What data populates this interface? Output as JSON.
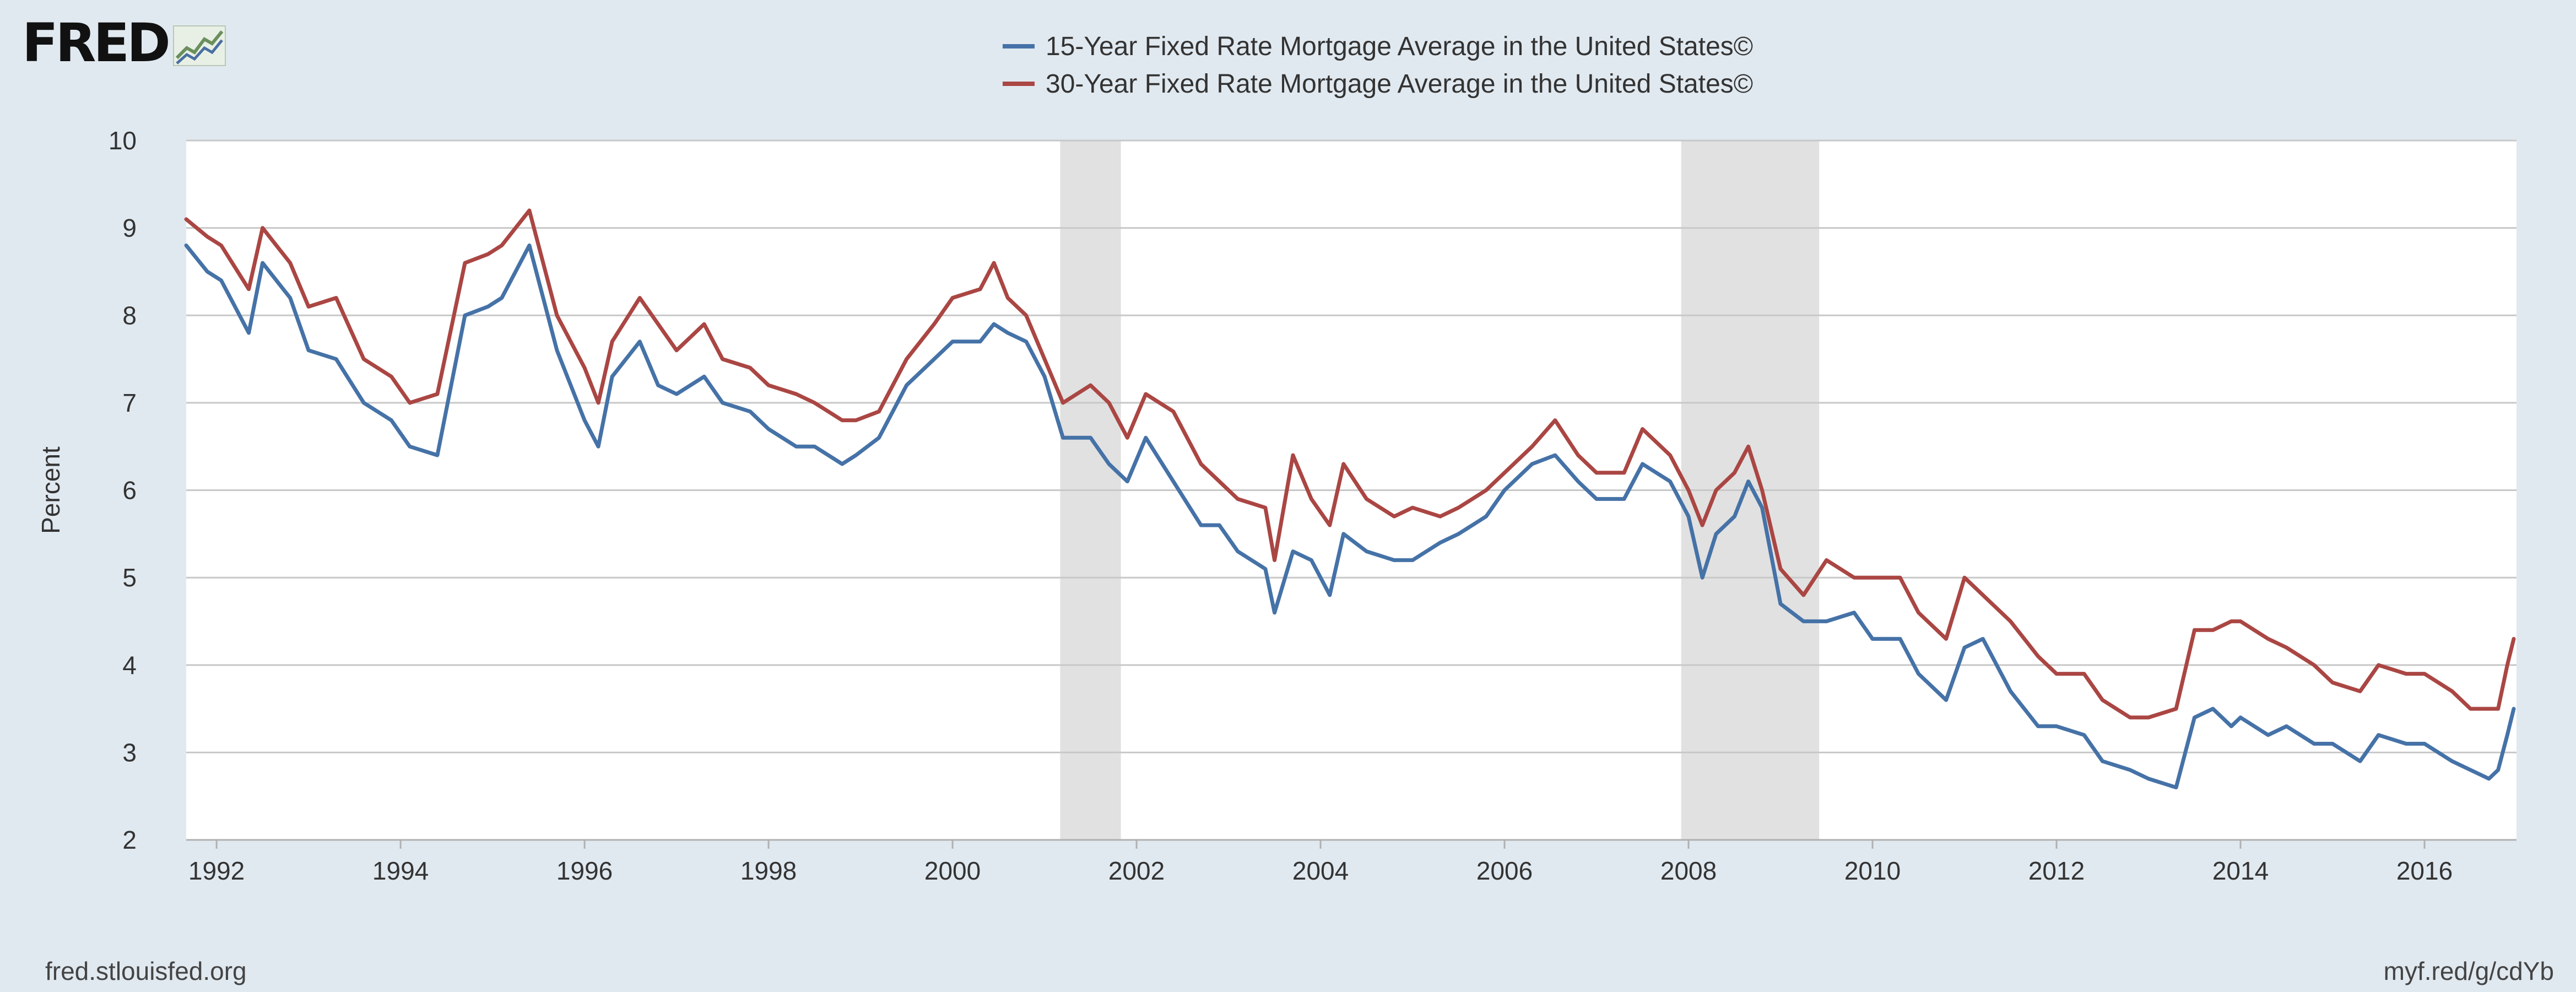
{
  "brand": {
    "logo_text": "FRED"
  },
  "footer": {
    "source": "fred.stlouisfed.org",
    "short_link": "myf.red/g/cdYb"
  },
  "chart_data": {
    "type": "line",
    "ylabel": "Percent",
    "xlabel": "",
    "ylim": [
      2,
      10
    ],
    "xlim": [
      1991.67,
      2017.0
    ],
    "y_ticks": [
      2,
      3,
      4,
      5,
      6,
      7,
      8,
      9,
      10
    ],
    "x_ticks": [
      1992,
      1994,
      1996,
      1998,
      2000,
      2002,
      2004,
      2006,
      2008,
      2010,
      2012,
      2014,
      2016
    ],
    "grid": "horizontal",
    "legend_position": "top-center",
    "recessions": [
      [
        2001.17,
        2001.83
      ],
      [
        2007.92,
        2009.42
      ]
    ],
    "series": [
      {
        "name": "15-Year Fixed Rate Mortgage Average in the United States©",
        "color": "#4572a7",
        "x": [
          1991.67,
          1991.9,
          1992.05,
          1992.35,
          1992.5,
          1992.8,
          1993.0,
          1993.3,
          1993.6,
          1993.9,
          1994.1,
          1994.4,
          1994.7,
          1994.95,
          1995.1,
          1995.4,
          1995.7,
          1996.0,
          1996.15,
          1996.3,
          1996.6,
          1996.8,
          1997.0,
          1997.3,
          1997.5,
          1997.8,
          1998.0,
          1998.3,
          1998.5,
          1998.8,
          1998.95,
          1999.2,
          1999.5,
          1999.8,
          2000.0,
          2000.3,
          2000.45,
          2000.6,
          2000.8,
          2001.0,
          2001.2,
          2001.5,
          2001.7,
          2001.9,
          2002.1,
          2002.4,
          2002.7,
          2002.9,
          2003.1,
          2003.4,
          2003.5,
          2003.7,
          2003.9,
          2004.1,
          2004.25,
          2004.5,
          2004.8,
          2005.0,
          2005.3,
          2005.5,
          2005.8,
          2006.0,
          2006.3,
          2006.55,
          2006.8,
          2007.0,
          2007.3,
          2007.5,
          2007.8,
          2008.0,
          2008.15,
          2008.3,
          2008.5,
          2008.65,
          2008.8,
          2009.0,
          2009.25,
          2009.5,
          2009.8,
          2010.0,
          2010.3,
          2010.5,
          2010.8,
          2011.0,
          2011.2,
          2011.5,
          2011.8,
          2012.0,
          2012.3,
          2012.5,
          2012.8,
          2013.0,
          2013.3,
          2013.5,
          2013.7,
          2013.9,
          2014.0,
          2014.3,
          2014.5,
          2014.8,
          2015.0,
          2015.3,
          2015.5,
          2015.8,
          2016.0,
          2016.3,
          2016.5,
          2016.7,
          2016.8,
          2016.9,
          2016.97
        ],
        "values": [
          8.8,
          8.5,
          8.4,
          7.8,
          8.6,
          8.2,
          7.6,
          7.5,
          7.0,
          6.8,
          6.5,
          6.4,
          8.0,
          8.1,
          8.2,
          8.8,
          7.6,
          6.8,
          6.5,
          7.3,
          7.7,
          7.2,
          7.1,
          7.3,
          7.0,
          6.9,
          6.7,
          6.5,
          6.5,
          6.3,
          6.4,
          6.6,
          7.2,
          7.5,
          7.7,
          7.7,
          7.9,
          7.8,
          7.7,
          7.3,
          6.6,
          6.6,
          6.3,
          6.1,
          6.6,
          6.1,
          5.6,
          5.6,
          5.3,
          5.1,
          4.6,
          5.3,
          5.2,
          4.8,
          5.5,
          5.3,
          5.2,
          5.2,
          5.4,
          5.5,
          5.7,
          6.0,
          6.3,
          6.4,
          6.1,
          5.9,
          5.9,
          6.3,
          6.1,
          5.7,
          5.0,
          5.5,
          5.7,
          6.1,
          5.8,
          4.7,
          4.5,
          4.5,
          4.6,
          4.3,
          4.3,
          3.9,
          3.6,
          4.2,
          4.3,
          3.7,
          3.3,
          3.3,
          3.2,
          2.9,
          2.8,
          2.7,
          2.6,
          3.4,
          3.5,
          3.3,
          3.4,
          3.2,
          3.3,
          3.1,
          3.1,
          2.9,
          3.2,
          3.1,
          3.1,
          2.9,
          2.8,
          2.7,
          2.8,
          3.2,
          3.5
        ]
      },
      {
        "name": "30-Year Fixed Rate Mortgage Average in the United States©",
        "color": "#aa4643",
        "x": [
          1991.67,
          1991.9,
          1992.05,
          1992.35,
          1992.5,
          1992.8,
          1993.0,
          1993.3,
          1993.6,
          1993.9,
          1994.1,
          1994.4,
          1994.7,
          1994.95,
          1995.1,
          1995.4,
          1995.7,
          1996.0,
          1996.15,
          1996.3,
          1996.6,
          1996.8,
          1997.0,
          1997.3,
          1997.5,
          1997.8,
          1998.0,
          1998.3,
          1998.5,
          1998.8,
          1998.95,
          1999.2,
          1999.5,
          1999.8,
          2000.0,
          2000.3,
          2000.45,
          2000.6,
          2000.8,
          2001.0,
          2001.2,
          2001.5,
          2001.7,
          2001.9,
          2002.1,
          2002.4,
          2002.7,
          2002.9,
          2003.1,
          2003.4,
          2003.5,
          2003.7,
          2003.9,
          2004.1,
          2004.25,
          2004.5,
          2004.8,
          2005.0,
          2005.3,
          2005.5,
          2005.8,
          2006.0,
          2006.3,
          2006.55,
          2006.8,
          2007.0,
          2007.3,
          2007.5,
          2007.8,
          2008.0,
          2008.15,
          2008.3,
          2008.5,
          2008.65,
          2008.8,
          2009.0,
          2009.25,
          2009.5,
          2009.8,
          2010.0,
          2010.3,
          2010.5,
          2010.8,
          2011.0,
          2011.2,
          2011.5,
          2011.8,
          2012.0,
          2012.3,
          2012.5,
          2012.8,
          2013.0,
          2013.3,
          2013.5,
          2013.7,
          2013.9,
          2014.0,
          2014.3,
          2014.5,
          2014.8,
          2015.0,
          2015.3,
          2015.5,
          2015.8,
          2016.0,
          2016.3,
          2016.5,
          2016.7,
          2016.8,
          2016.9,
          2016.97
        ],
        "values": [
          9.1,
          8.9,
          8.8,
          8.3,
          9.0,
          8.6,
          8.1,
          8.2,
          7.5,
          7.3,
          7.0,
          7.1,
          8.6,
          8.7,
          8.8,
          9.2,
          8.0,
          7.4,
          7.0,
          7.7,
          8.2,
          7.9,
          7.6,
          7.9,
          7.5,
          7.4,
          7.2,
          7.1,
          7.0,
          6.8,
          6.8,
          6.9,
          7.5,
          7.9,
          8.2,
          8.3,
          8.6,
          8.2,
          8.0,
          7.5,
          7.0,
          7.2,
          7.0,
          6.6,
          7.1,
          6.9,
          6.3,
          6.1,
          5.9,
          5.8,
          5.2,
          6.4,
          5.9,
          5.6,
          6.3,
          5.9,
          5.7,
          5.8,
          5.7,
          5.8,
          6.0,
          6.2,
          6.5,
          6.8,
          6.4,
          6.2,
          6.2,
          6.7,
          6.4,
          6.0,
          5.6,
          6.0,
          6.2,
          6.5,
          6.0,
          5.1,
          4.8,
          5.2,
          5.0,
          5.0,
          5.0,
          4.6,
          4.3,
          5.0,
          4.8,
          4.5,
          4.1,
          3.9,
          3.9,
          3.6,
          3.4,
          3.4,
          3.5,
          4.4,
          4.4,
          4.5,
          4.5,
          4.3,
          4.2,
          4.0,
          3.8,
          3.7,
          4.0,
          3.9,
          3.9,
          3.7,
          3.5,
          3.5,
          3.5,
          4.0,
          4.3
        ]
      }
    ]
  }
}
